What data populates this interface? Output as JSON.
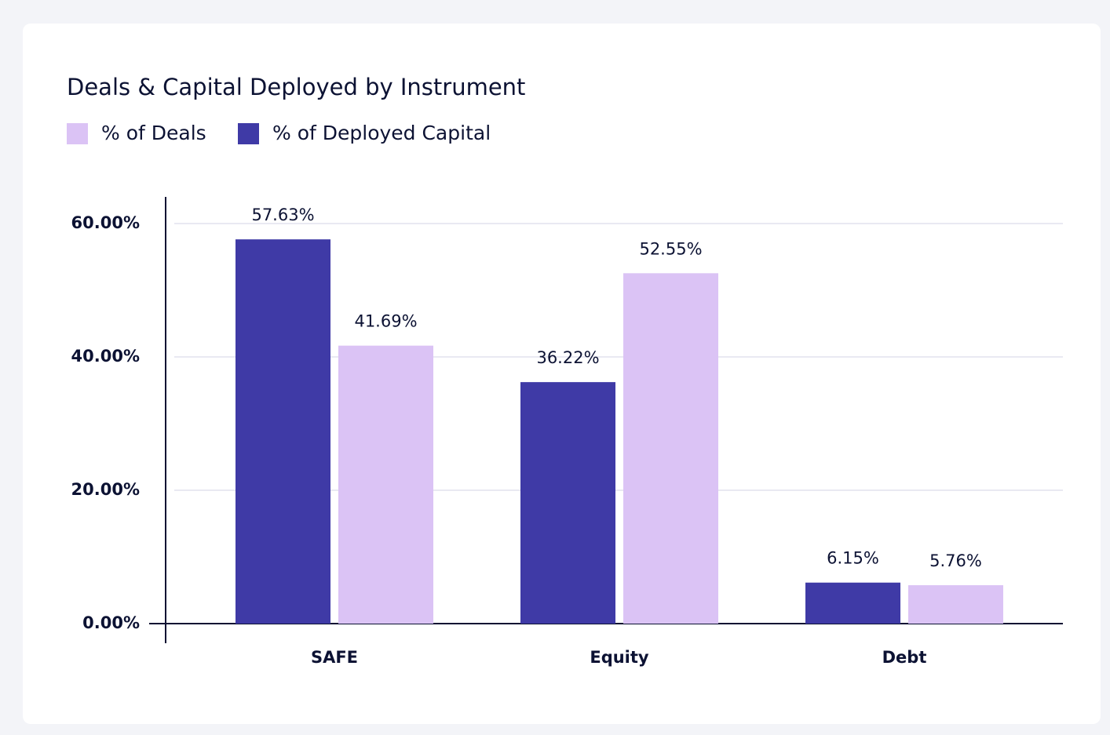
{
  "chart_data": {
    "type": "bar",
    "title": "Deals & Capital Deployed by Instrument",
    "categories": [
      "SAFE",
      "Equity",
      "Debt"
    ],
    "series": [
      {
        "name": "% of Deals",
        "color": "#dbc3f5",
        "values": [
          41.69,
          52.55,
          5.76
        ],
        "value_labels": [
          "41.69%",
          "52.55%",
          "5.76%"
        ]
      },
      {
        "name": "% of Deployed Capital",
        "color": "#3f3aa6",
        "values": [
          57.63,
          36.22,
          6.15
        ],
        "value_labels": [
          "57.63%",
          "36.22%",
          "6.15%"
        ]
      }
    ],
    "ylim": [
      0,
      64
    ],
    "yticks": [
      {
        "value": 0,
        "label": "0.00%"
      },
      {
        "value": 20,
        "label": "20.00%"
      },
      {
        "value": 40,
        "label": "40.00%"
      },
      {
        "value": 60,
        "label": "60.00%"
      }
    ],
    "grid": true,
    "legend": "top-left"
  }
}
